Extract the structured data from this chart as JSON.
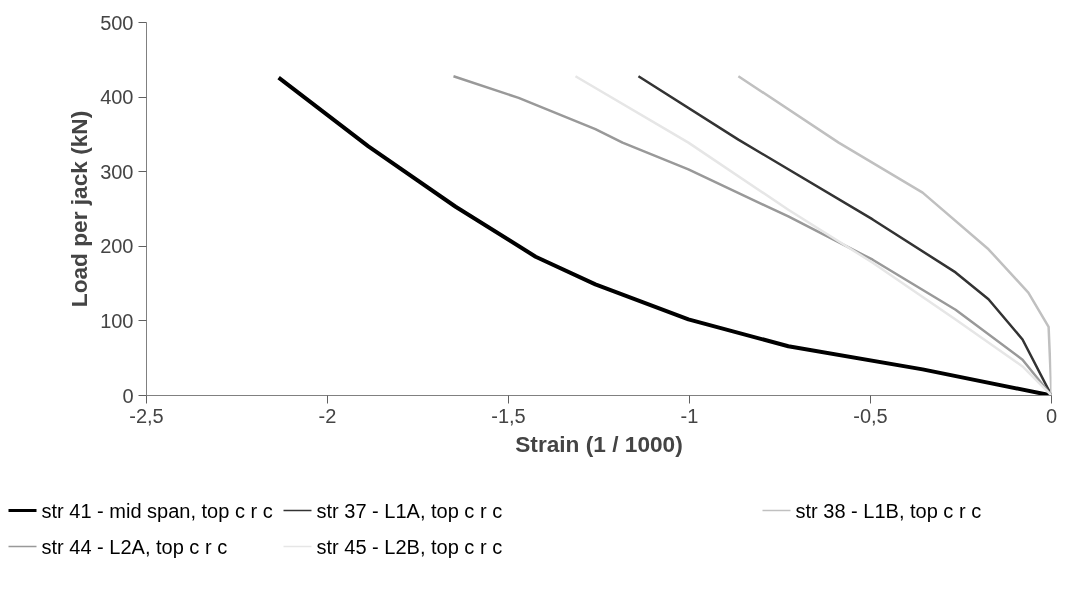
{
  "chart_data": {
    "type": "line",
    "xlabel": "Strain (1 / 1000)",
    "ylabel": "Load per jack (kN)",
    "xlim": [
      -2.5,
      0
    ],
    "ylim": [
      0,
      500
    ],
    "xticks": [
      {
        "value": -2.5,
        "label": "-2,5"
      },
      -2,
      {
        "value": -1.5,
        "label": "-1,5"
      },
      -1,
      {
        "value": -0.5,
        "label": "-0,5"
      },
      0
    ],
    "yticks": [
      0,
      100,
      200,
      300,
      400,
      500
    ],
    "grid": false,
    "legend": "bottom",
    "line_style": "solid",
    "marker": "none",
    "series": [
      {
        "name": "str 41 - mid span, top c r c",
        "color": "#000000",
        "x": [
          -2.135,
          -1.887,
          -1.646,
          -1.425,
          -1.26,
          -1.003,
          -0.727,
          -0.356,
          0
        ],
        "values": [
          426,
          334,
          253,
          186,
          149,
          102,
          66,
          35,
          0
        ]
      },
      {
        "name": "str 37 - L1A, top c r c",
        "color": "#333333",
        "x": [
          -1.141,
          -0.865,
          -0.494,
          -0.265,
          -0.174,
          -0.08,
          0
        ],
        "values": [
          428,
          343,
          236,
          165,
          129,
          75,
          0
        ]
      },
      {
        "name": "str 38 - L1B, top c r c",
        "color": "#c0c0c0",
        "x": [
          -0.865,
          -0.588,
          -0.356,
          -0.174,
          -0.064,
          -0.008,
          0
        ],
        "values": [
          428,
          339,
          272,
          196,
          138,
          92,
          0
        ]
      },
      {
        "name": "str 44 - L2A, top c r c",
        "color": "#999999",
        "x": [
          -1.652,
          -1.472,
          -1.26,
          -1.185,
          -1.003,
          -0.727,
          -0.494,
          -0.265,
          -0.08,
          0
        ],
        "values": [
          428,
          399,
          357,
          339,
          303,
          240,
          182,
          115,
          48,
          0
        ]
      },
      {
        "name": "str 45 - L2B, top c r c",
        "color": "#e6e6e6",
        "x": [
          -1.315,
          -1.003,
          -0.727,
          -0.494,
          -0.265,
          -0.08,
          0
        ],
        "values": [
          428,
          339,
          249,
          178,
          102,
          39,
          0
        ]
      }
    ]
  }
}
